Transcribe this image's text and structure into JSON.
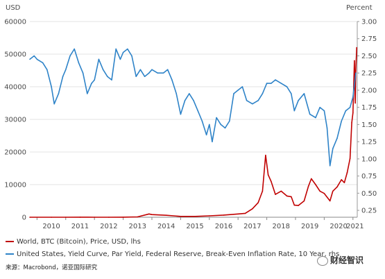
{
  "chart_data": {
    "type": "line",
    "left_unit": "USD",
    "right_unit": "Percent",
    "x_tick_labels": [
      "2010",
      "2011",
      "2012",
      "2013",
      "2014",
      "2015",
      "2016",
      "2017",
      "2018",
      "2019",
      "2020",
      "2021"
    ],
    "xlim": [
      2009.75,
      2021.15
    ],
    "left_axis": {
      "ylim": [
        0,
        60000
      ],
      "ticks": [
        "0",
        "10000",
        "20000",
        "30000",
        "40000",
        "50000",
        "60000"
      ]
    },
    "right_axis": {
      "ylim": [
        0.15,
        3.0
      ],
      "ticks": [
        "0.25",
        "0.50",
        "0.75",
        "1.00",
        "1.25",
        "1.50",
        "1.75",
        "2.00",
        "2.25",
        "2.50",
        "2.75",
        "3.00"
      ]
    },
    "grid": true,
    "legend_position": "bottom",
    "series": [
      {
        "name": "World, BTC (Bitcoin), Price, USD, lhs",
        "color": "#c00000",
        "axis": "left",
        "x": [
          2009.75,
          2010.5,
          2011.0,
          2011.5,
          2012.0,
          2012.5,
          2013.0,
          2013.5,
          2013.9,
          2014.0,
          2014.5,
          2015.0,
          2015.5,
          2016.0,
          2016.5,
          2017.0,
          2017.25,
          2017.5,
          2017.7,
          2017.85,
          2017.96,
          2018.05,
          2018.15,
          2018.3,
          2018.5,
          2018.7,
          2018.85,
          2018.96,
          2019.1,
          2019.3,
          2019.45,
          2019.55,
          2019.7,
          2019.85,
          2020.0,
          2020.2,
          2020.3,
          2020.45,
          2020.6,
          2020.7,
          2020.8,
          2020.9,
          2020.96,
          2021.0,
          2021.05,
          2021.08,
          2021.1,
          2021.13
        ],
        "values": [
          0,
          0,
          0,
          15,
          10,
          8,
          15,
          100,
          1000,
          800,
          600,
          250,
          250,
          420,
          650,
          1000,
          1200,
          2600,
          4500,
          8000,
          19000,
          13000,
          11000,
          7000,
          8000,
          6500,
          6300,
          3700,
          3600,
          5000,
          9500,
          11800,
          10000,
          8000,
          7300,
          5000,
          8000,
          9300,
          11500,
          10600,
          13700,
          18000,
          29000,
          32000,
          48000,
          35000,
          45000,
          52000
        ]
      },
      {
        "name": "United States, Yield Curve, Par Yield, Federal Reserve, Break-Even Inflation Rate, 10 Year, rhs",
        "color": "#2e83c8",
        "axis": "right",
        "x": [
          2009.75,
          2009.9,
          2010.0,
          2010.2,
          2010.35,
          2010.5,
          2010.6,
          2010.75,
          2010.9,
          2011.0,
          2011.15,
          2011.3,
          2011.45,
          2011.6,
          2011.75,
          2011.9,
          2012.0,
          2012.15,
          2012.3,
          2012.45,
          2012.6,
          2012.75,
          2012.9,
          2013.0,
          2013.15,
          2013.3,
          2013.45,
          2013.6,
          2013.75,
          2013.9,
          2014.0,
          2014.2,
          2014.4,
          2014.55,
          2014.7,
          2014.85,
          2015.0,
          2015.15,
          2015.3,
          2015.45,
          2015.6,
          2015.75,
          2015.9,
          2016.0,
          2016.1,
          2016.25,
          2016.4,
          2016.55,
          2016.7,
          2016.85,
          2017.0,
          2017.15,
          2017.3,
          2017.5,
          2017.7,
          2017.85,
          2018.0,
          2018.15,
          2018.3,
          2018.5,
          2018.7,
          2018.85,
          2018.96,
          2019.1,
          2019.3,
          2019.5,
          2019.7,
          2019.85,
          2020.0,
          2020.1,
          2020.2,
          2020.3,
          2020.45,
          2020.6,
          2020.75,
          2020.9,
          2021.0,
          2021.1
        ],
        "values": [
          2.45,
          2.5,
          2.45,
          2.4,
          2.3,
          2.05,
          1.8,
          1.95,
          2.2,
          2.3,
          2.5,
          2.6,
          2.4,
          2.25,
          1.95,
          2.1,
          2.15,
          2.45,
          2.3,
          2.2,
          2.15,
          2.6,
          2.45,
          2.55,
          2.6,
          2.5,
          2.2,
          2.3,
          2.2,
          2.25,
          2.3,
          2.25,
          2.25,
          2.3,
          2.15,
          1.95,
          1.65,
          1.85,
          1.95,
          1.85,
          1.7,
          1.55,
          1.35,
          1.5,
          1.25,
          1.6,
          1.5,
          1.45,
          1.55,
          1.95,
          2.0,
          2.05,
          1.85,
          1.8,
          1.85,
          1.95,
          2.1,
          2.1,
          2.15,
          2.1,
          2.05,
          1.95,
          1.7,
          1.85,
          1.95,
          1.65,
          1.6,
          1.75,
          1.7,
          1.45,
          0.9,
          1.15,
          1.3,
          1.55,
          1.7,
          1.75,
          1.9,
          2.25
        ]
      }
    ]
  },
  "source_label": "来源：Macrobond，诺亚国际研究",
  "watermark_text": "财经智识",
  "watermark_icon": "wechat-icon"
}
